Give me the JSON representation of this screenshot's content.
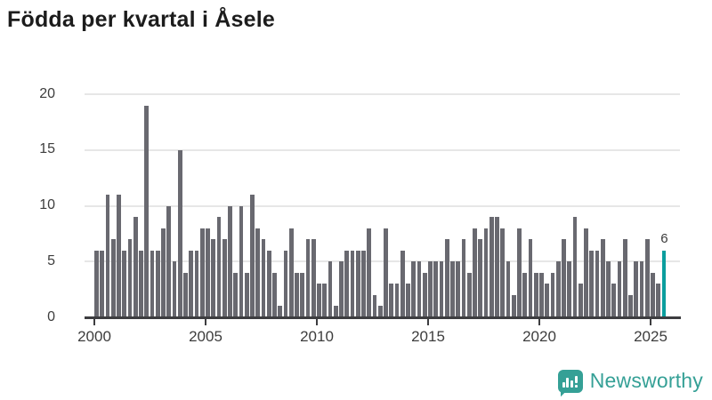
{
  "title": "Födda per kvartal i Åsele",
  "chart_data": {
    "type": "bar",
    "title": "Födda per kvartal i Åsele",
    "xlabel": "",
    "ylabel": "",
    "ylim": [
      0,
      20
    ],
    "yticks": [
      0,
      5,
      10,
      15,
      20
    ],
    "xticks": [
      2000,
      2005,
      2010,
      2015,
      2020,
      2025
    ],
    "grid": "horizontal",
    "legend": "none",
    "categories": [
      "2000Q1",
      "2000Q2",
      "2000Q3",
      "2000Q4",
      "2001Q1",
      "2001Q2",
      "2001Q3",
      "2001Q4",
      "2002Q1",
      "2002Q2",
      "2002Q3",
      "2002Q4",
      "2003Q1",
      "2003Q2",
      "2003Q3",
      "2003Q4",
      "2004Q1",
      "2004Q2",
      "2004Q3",
      "2004Q4",
      "2005Q1",
      "2005Q2",
      "2005Q3",
      "2005Q4",
      "2006Q1",
      "2006Q2",
      "2006Q3",
      "2006Q4",
      "2007Q1",
      "2007Q2",
      "2007Q3",
      "2007Q4",
      "2008Q1",
      "2008Q2",
      "2008Q3",
      "2008Q4",
      "2009Q1",
      "2009Q2",
      "2009Q3",
      "2009Q4",
      "2010Q1",
      "2010Q2",
      "2010Q3",
      "2010Q4",
      "2011Q1",
      "2011Q2",
      "2011Q3",
      "2011Q4",
      "2012Q1",
      "2012Q2",
      "2012Q3",
      "2012Q4",
      "2013Q1",
      "2013Q2",
      "2013Q3",
      "2013Q4",
      "2014Q1",
      "2014Q2",
      "2014Q3",
      "2014Q4",
      "2015Q1",
      "2015Q2",
      "2015Q3",
      "2015Q4",
      "2016Q1",
      "2016Q2",
      "2016Q3",
      "2016Q4",
      "2017Q1",
      "2017Q2",
      "2017Q3",
      "2017Q4",
      "2018Q1",
      "2018Q2",
      "2018Q3",
      "2018Q4",
      "2019Q1",
      "2019Q2",
      "2019Q3",
      "2019Q4",
      "2020Q1",
      "2020Q2",
      "2020Q3",
      "2020Q4",
      "2021Q1",
      "2021Q2",
      "2021Q3",
      "2021Q4",
      "2022Q1",
      "2022Q2",
      "2022Q3",
      "2022Q4",
      "2023Q1",
      "2023Q2",
      "2023Q3",
      "2023Q4",
      "2024Q1",
      "2024Q2",
      "2024Q3",
      "2024Q4",
      "2025Q1",
      "2025Q2",
      "2025Q3"
    ],
    "values": [
      6,
      6,
      11,
      7,
      11,
      6,
      7,
      9,
      6,
      19,
      6,
      6,
      8,
      10,
      5,
      15,
      4,
      6,
      6,
      8,
      8,
      7,
      9,
      7,
      10,
      4,
      10,
      4,
      11,
      8,
      7,
      6,
      4,
      1,
      6,
      8,
      4,
      4,
      7,
      7,
      3,
      3,
      5,
      1,
      5,
      6,
      6,
      6,
      6,
      8,
      2,
      1,
      8,
      3,
      3,
      6,
      3,
      5,
      5,
      4,
      5,
      5,
      5,
      7,
      5,
      5,
      7,
      4,
      8,
      7,
      8,
      9,
      9,
      8,
      5,
      2,
      8,
      4,
      7,
      4,
      4,
      3,
      4,
      5,
      7,
      5,
      9,
      3,
      8,
      6,
      6,
      7,
      5,
      3,
      5,
      7,
      2,
      5,
      5,
      7,
      4,
      3,
      6
    ],
    "highlight": {
      "index": 102,
      "category": "2025Q3",
      "value": 6,
      "label": "6"
    }
  },
  "colors": {
    "bar": "#696970",
    "highlight": "#0b9e9e",
    "grid": "#e7e7e7",
    "axis": "#3d3d40",
    "tick_text": "#3d3d3d",
    "title_text": "#1c1c1c",
    "brand": "#35a096"
  },
  "footer": {
    "brand": "Newsworthy"
  }
}
